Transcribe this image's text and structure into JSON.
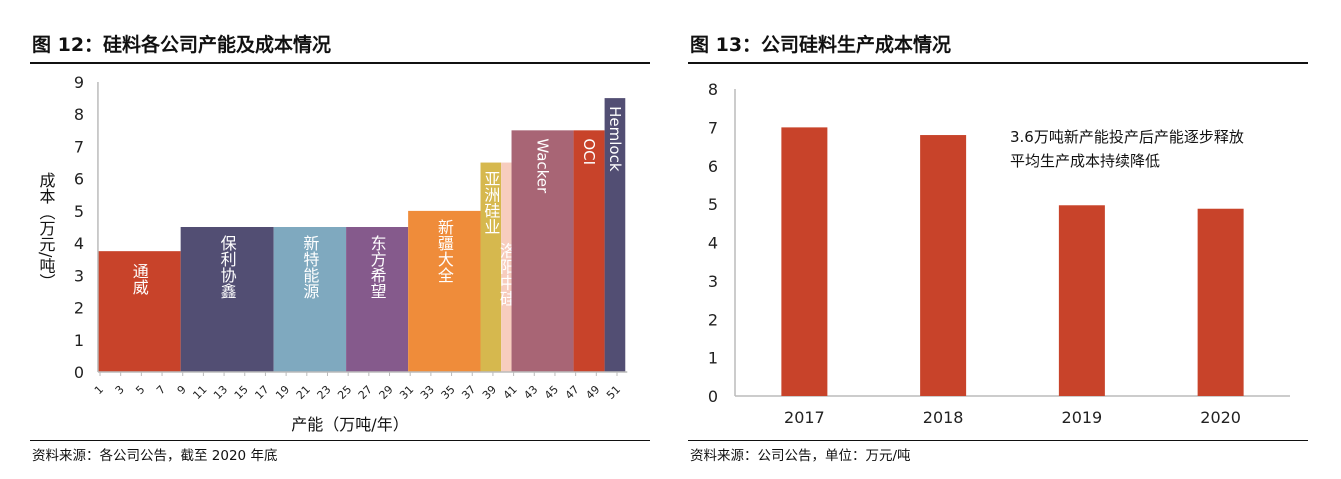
{
  "left": {
    "title": "图 12：硅料各公司产能及成本情况",
    "source": "资料来源：各公司公告，截至 2020 年底"
  },
  "right": {
    "title": "图 13：公司硅料生产成本情况",
    "source": "资料来源：公司公告，单位：万元/吨"
  },
  "chart_data": [
    {
      "type": "bar",
      "variable_width": true,
      "xlabel": "产能（万吨/年）",
      "ylabel": "成本（万元/吨）",
      "ylim": [
        0,
        9
      ],
      "yticks": [
        0,
        1,
        2,
        3,
        4,
        5,
        6,
        7,
        8,
        9
      ],
      "xticks": [
        1,
        3,
        5,
        7,
        9,
        11,
        13,
        15,
        17,
        19,
        21,
        23,
        25,
        27,
        29,
        31,
        33,
        35,
        37,
        39,
        41,
        43,
        45,
        47,
        49,
        51
      ],
      "grid": false,
      "series": [
        {
          "label": "通威",
          "capacity": 8,
          "cost": 3.75,
          "color": "#C8432A"
        },
        {
          "label": "保利协鑫",
          "capacity": 9,
          "cost": 4.5,
          "color": "#524E73"
        },
        {
          "label": "新特能源",
          "capacity": 7,
          "cost": 4.5,
          "color": "#7FA9BF"
        },
        {
          "label": "东方希望",
          "capacity": 6,
          "cost": 4.5,
          "color": "#855A8C"
        },
        {
          "label": "新疆大全",
          "capacity": 7,
          "cost": 5.0,
          "color": "#EF8C3A"
        },
        {
          "label": "亚洲硅业",
          "capacity": 2,
          "cost": 6.5,
          "color": "#D6B84E"
        },
        {
          "label": "洛阳中硅",
          "capacity": 1,
          "cost": 6.5,
          "color": "#F7CDBE"
        },
        {
          "label": "Wacker",
          "capacity": 6,
          "cost": 7.5,
          "color": "#A86575"
        },
        {
          "label": "OCI",
          "capacity": 3,
          "cost": 7.5,
          "color": "#C8432A"
        },
        {
          "label": "Hemlock",
          "capacity": 2,
          "cost": 8.5,
          "color": "#524E73"
        }
      ]
    },
    {
      "type": "bar",
      "categories": [
        "2017",
        "2018",
        "2019",
        "2020"
      ],
      "values": [
        7.0,
        6.8,
        4.97,
        4.88
      ],
      "ylim": [
        0,
        8
      ],
      "yticks": [
        0,
        1,
        2,
        3,
        4,
        5,
        6,
        7,
        8
      ],
      "grid": false,
      "color": "#C8432A",
      "annotation": [
        "3.6万吨新产能投产后产能逐步释放",
        "平均生产成本持续降低"
      ]
    }
  ]
}
